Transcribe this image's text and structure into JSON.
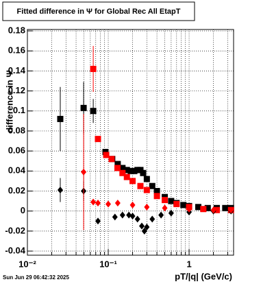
{
  "chart_data": {
    "type": "scatter",
    "title": "Fitted difference in  Ψ  for Global Rec All EtapT",
    "x_label": "pT/|q| (GeV/c)",
    "y_label": "difference in  Ψ",
    "footer": "Sun Jun 29 06:42:32 2025",
    "log_x": true,
    "grid": true,
    "xlim": [
      0.01,
      3.55
    ],
    "ylim": [
      -0.0441,
      0.1814
    ],
    "xticks": [
      {
        "value": 0.01,
        "label": "10⁻²"
      },
      {
        "value": 0.1,
        "label": "10⁻¹"
      },
      1
    ],
    "xminor": [
      0.02,
      0.03,
      0.04,
      0.05,
      0.06,
      0.07,
      0.08,
      0.09,
      0.2,
      0.3,
      0.4,
      0.5,
      0.6,
      0.7,
      0.8,
      0.9,
      2,
      3
    ],
    "yticks": [
      -0.04,
      -0.02,
      0,
      0.02,
      0.04,
      0.06,
      0.08,
      0.1,
      0.12,
      0.14,
      0.16,
      0.18
    ],
    "series": [
      {
        "marker": "square",
        "color": "#000000",
        "x": [
          0.0255,
          0.0496,
          0.0652,
          0.0925,
          0.112,
          0.131,
          0.15,
          0.17,
          0.19,
          0.21,
          0.23,
          0.25,
          0.27,
          0.3,
          0.35,
          0.4,
          0.5,
          0.6,
          0.7,
          0.85,
          1.0,
          1.3,
          1.7,
          2.2,
          2.8,
          3.3
        ],
        "values": [
          0.092,
          0.103,
          0.1,
          0.059,
          0.052,
          0.047,
          0.043,
          0.041,
          0.04,
          0.04,
          0.041,
          0.041,
          0.038,
          0.032,
          0.025,
          0.02,
          0.014,
          0.01,
          0.008,
          0.006,
          0.005,
          0.004,
          0.003,
          0.003,
          0.003,
          0.003
        ],
        "errors": [
          0.032,
          0.026,
          0.012,
          null,
          null,
          null,
          null,
          null,
          null,
          null,
          null,
          null,
          null,
          null,
          null,
          null,
          null,
          null,
          null,
          null,
          null,
          null,
          null,
          null,
          null,
          null
        ]
      },
      {
        "marker": "square",
        "color": "#ff0000",
        "x": [
          0.0652,
          0.0746,
          0.0944,
          0.11,
          0.13,
          0.15,
          0.17,
          0.2,
          0.25,
          0.3,
          0.4,
          0.5,
          0.7,
          1.0,
          1.5,
          2.2,
          3.3
        ],
        "values": [
          0.142,
          0.072,
          0.056,
          0.052,
          0.043,
          0.038,
          0.034,
          0.03,
          0.025,
          0.021,
          0.015,
          0.011,
          0.007,
          0.004,
          0.002,
          0.001,
          0.001
        ],
        "errors": [
          0.023,
          null,
          null,
          null,
          null,
          null,
          null,
          null,
          null,
          null,
          null,
          null,
          null,
          null,
          null,
          null,
          null
        ]
      },
      {
        "marker": "diamond",
        "color": "#000000",
        "x": [
          0.0255,
          0.0496,
          0.0746,
          0.121,
          0.15,
          0.18,
          0.2,
          0.23,
          0.26,
          0.28,
          0.3,
          0.35,
          0.45,
          0.6,
          1.0,
          2.0,
          3.3
        ],
        "values": [
          0.021,
          0.02,
          -0.01,
          -0.006,
          -0.004,
          -0.004,
          -0.005,
          -0.008,
          -0.015,
          -0.02,
          -0.016,
          -0.008,
          -0.004,
          -0.002,
          -0.001,
          0,
          0
        ],
        "errors": [
          0.012,
          0.01,
          null,
          null,
          null,
          null,
          null,
          null,
          null,
          null,
          null,
          null,
          null,
          null,
          null,
          null,
          null
        ]
      },
      {
        "marker": "diamond",
        "color": "#ff0000",
        "x": [
          0.0496,
          0.0652,
          0.0746,
          0.1,
          0.131,
          0.2,
          0.3,
          0.5,
          1.0,
          2.0,
          3.3
        ],
        "values": [
          0.039,
          0.009,
          0.008,
          0.007,
          0.008,
          0.006,
          0.004,
          0.003,
          0.002,
          0.001,
          0.001
        ],
        "errors": [
          0.058,
          null,
          null,
          null,
          null,
          null,
          null,
          null,
          null,
          null,
          null
        ]
      }
    ]
  }
}
